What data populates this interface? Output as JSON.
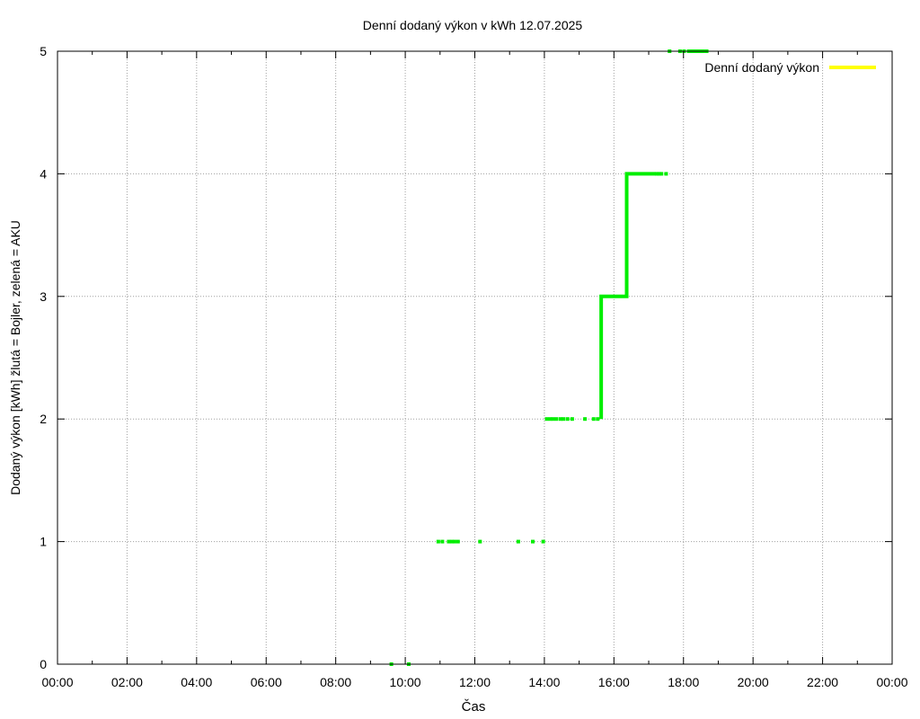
{
  "chart_data": {
    "type": "line",
    "title": "Denní dodaný výkon v kWh 12.07.2025",
    "xlabel": "Čas",
    "ylabel": "Dodaný výkon [kWh]  žlutá = Bojler, zelená = AKU",
    "x_ticks": [
      "00:00",
      "02:00",
      "04:00",
      "06:00",
      "08:00",
      "10:00",
      "12:00",
      "14:00",
      "16:00",
      "18:00",
      "20:00",
      "22:00",
      "00:00"
    ],
    "y_ticks": [
      "0",
      "1",
      "2",
      "3",
      "4",
      "5"
    ],
    "xlim_hours": [
      0,
      24
    ],
    "ylim": [
      0,
      5
    ],
    "grid": true,
    "legend": {
      "position": "top-right",
      "entries": [
        {
          "label": "Denní dodaný výkon",
          "color": "#ffff00"
        }
      ]
    },
    "series": [
      {
        "name": "Denní dodaný výkon",
        "color": "#ffff00",
        "points": []
      },
      {
        "color": "#00ee00",
        "style": "points",
        "points": [
          {
            "t": "09:36",
            "v": 0
          },
          {
            "t": "10:06",
            "v": 0
          },
          {
            "t": "10:57",
            "v": 1
          },
          {
            "t": "11:04",
            "v": 1
          },
          {
            "t": "11:15",
            "v": 1
          },
          {
            "t": "11:20",
            "v": 1
          },
          {
            "t": "11:25",
            "v": 1
          },
          {
            "t": "11:31",
            "v": 1
          },
          {
            "t": "12:09",
            "v": 1
          },
          {
            "t": "13:15",
            "v": 1
          },
          {
            "t": "13:40",
            "v": 1
          },
          {
            "t": "13:58",
            "v": 1
          },
          {
            "t": "14:04",
            "v": 2
          },
          {
            "t": "14:10",
            "v": 2
          },
          {
            "t": "14:15",
            "v": 2
          },
          {
            "t": "14:21",
            "v": 2
          },
          {
            "t": "14:28",
            "v": 2
          },
          {
            "t": "14:33",
            "v": 2
          },
          {
            "t": "14:40",
            "v": 2
          },
          {
            "t": "14:48",
            "v": 2
          },
          {
            "t": "15:10",
            "v": 2
          },
          {
            "t": "15:25",
            "v": 2
          },
          {
            "t": "15:32",
            "v": 2
          }
        ]
      },
      {
        "color": "#00ee00",
        "style": "line",
        "points": [
          {
            "t": "15:38",
            "v": 2
          },
          {
            "t": "15:38",
            "v": 3
          },
          {
            "t": "16:22",
            "v": 3
          },
          {
            "t": "16:22",
            "v": 4
          },
          {
            "t": "17:12",
            "v": 4
          }
        ]
      },
      {
        "color": "#00ee00",
        "style": "points",
        "points": [
          {
            "t": "17:14",
            "v": 4
          },
          {
            "t": "17:18",
            "v": 4
          },
          {
            "t": "17:22",
            "v": 4
          },
          {
            "t": "17:30",
            "v": 4
          },
          {
            "t": "17:36",
            "v": 5
          },
          {
            "t": "17:54",
            "v": 5
          },
          {
            "t": "18:01",
            "v": 5
          },
          {
            "t": "18:09",
            "v": 5
          },
          {
            "t": "18:15",
            "v": 5
          },
          {
            "t": "18:20",
            "v": 5
          },
          {
            "t": "18:24",
            "v": 5
          },
          {
            "t": "18:29",
            "v": 5
          },
          {
            "t": "18:34",
            "v": 5
          },
          {
            "t": "18:40",
            "v": 5
          }
        ]
      }
    ]
  }
}
